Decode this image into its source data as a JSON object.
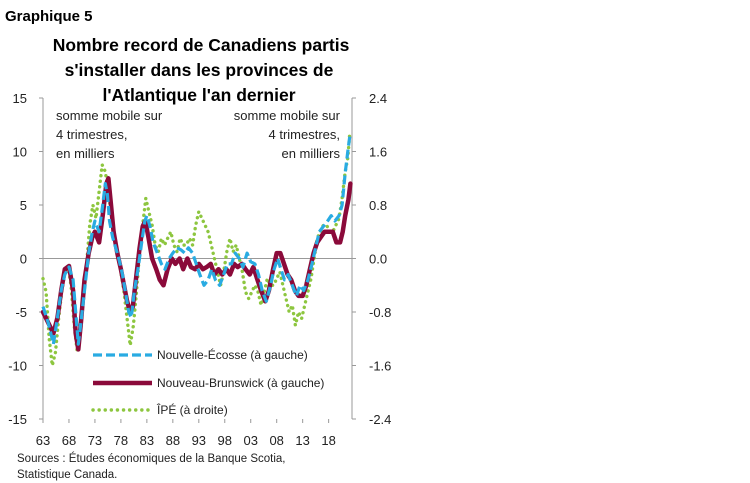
{
  "figure_label": "Graphique 5",
  "chart_data": {
    "type": "line",
    "title": [
      "Nombre record de Canadiens partis",
      "s'installer dans les provinces de",
      "l'Atlantique l'an dernier"
    ],
    "left_axis_note": [
      "somme mobile sur",
      "4 trimestres,",
      "en milliers"
    ],
    "right_axis_note": [
      "somme mobile sur",
      "4 trimestres,",
      "en milliers"
    ],
    "x_range": [
      1963,
      2022.5
    ],
    "x_ticks": [
      {
        "value": 1963,
        "label": "63"
      },
      {
        "value": 1968,
        "label": "68"
      },
      {
        "value": 1973,
        "label": "73"
      },
      {
        "value": 1978,
        "label": "78"
      },
      {
        "value": 1983,
        "label": "83"
      },
      {
        "value": 1988,
        "label": "88"
      },
      {
        "value": 1993,
        "label": "93"
      },
      {
        "value": 1998,
        "label": "98"
      },
      {
        "value": 2003,
        "label": "03"
      },
      {
        "value": 2008,
        "label": "08"
      },
      {
        "value": 2013,
        "label": "13"
      },
      {
        "value": 2018,
        "label": "18"
      }
    ],
    "y_left": {
      "range": [
        -15,
        15
      ],
      "ticks": [
        {
          "value": 15,
          "label": "15"
        },
        {
          "value": 10,
          "label": "10"
        },
        {
          "value": 5,
          "label": "5"
        },
        {
          "value": 0,
          "label": "0"
        },
        {
          "value": -5,
          "label": "-5"
        },
        {
          "value": -10,
          "label": "-10"
        },
        {
          "value": -15,
          "label": "-15"
        }
      ]
    },
    "y_right": {
      "range": [
        -2.4,
        2.4
      ],
      "ticks": [
        {
          "value": 2.4,
          "label": "2.4"
        },
        {
          "value": 1.6,
          "label": "1.6"
        },
        {
          "value": 0.8,
          "label": "0.8"
        },
        {
          "value": 0,
          "label": "0.0"
        },
        {
          "value": -0.8,
          "label": "-0.8"
        },
        {
          "value": -1.6,
          "label": "-1.6"
        },
        {
          "value": -2.4,
          "label": "-2.4"
        }
      ]
    },
    "series": [
      {
        "name": "Nouvelle-Écosse (à gauche)",
        "axis": "left",
        "color": "#29abe2",
        "style": "dashed",
        "points": [
          [
            1963,
            -4.5
          ],
          [
            1964,
            -6
          ],
          [
            1965,
            -8
          ],
          [
            1965.8,
            -5.5
          ],
          [
            1966.5,
            -3
          ],
          [
            1967.2,
            -1.5
          ],
          [
            1968,
            -0.8
          ],
          [
            1968.8,
            -2
          ],
          [
            1969.3,
            -5
          ],
          [
            1969.8,
            -8
          ],
          [
            1970.3,
            -6
          ],
          [
            1971,
            -3
          ],
          [
            1971.8,
            0.5
          ],
          [
            1972.5,
            2.5
          ],
          [
            1973,
            3.5
          ],
          [
            1973.8,
            2.5
          ],
          [
            1974.5,
            5
          ],
          [
            1975,
            7
          ],
          [
            1975.4,
            6
          ],
          [
            1975.8,
            3.5
          ],
          [
            1976.4,
            2
          ],
          [
            1977,
            1
          ],
          [
            1977.6,
            0
          ],
          [
            1978.3,
            -1.5
          ],
          [
            1979,
            -3.5
          ],
          [
            1979.5,
            -5
          ],
          [
            1980,
            -5.5
          ],
          [
            1980.6,
            -3
          ],
          [
            1981.3,
            -1
          ],
          [
            1982,
            1.5
          ],
          [
            1982.6,
            3.5
          ],
          [
            1983,
            4
          ],
          [
            1983.6,
            3
          ],
          [
            1984.2,
            1.5
          ],
          [
            1985,
            0.5
          ],
          [
            1985.8,
            -0.5
          ],
          [
            1986.5,
            -1
          ],
          [
            1987.3,
            0
          ],
          [
            1988,
            0.5
          ],
          [
            1988.8,
            1
          ],
          [
            1989.6,
            0.8
          ],
          [
            1990.3,
            0.5
          ],
          [
            1991,
            1
          ],
          [
            1991.8,
            0.5
          ],
          [
            1992.5,
            -0.5
          ],
          [
            1993.2,
            -1.5
          ],
          [
            1994,
            -2.5
          ],
          [
            1994.8,
            -2
          ],
          [
            1995.5,
            -1
          ],
          [
            1996.2,
            -2
          ],
          [
            1997,
            -2.5
          ],
          [
            1997.8,
            -1.5
          ],
          [
            1998.5,
            -0.5
          ],
          [
            1999.3,
            -0.5
          ],
          [
            2000,
            0.5
          ],
          [
            2000.8,
            0
          ],
          [
            2001.5,
            -0.8
          ],
          [
            2002.3,
            0.5
          ],
          [
            2003,
            -0.3
          ],
          [
            2003.8,
            -0.5
          ],
          [
            2004.5,
            -1.5
          ],
          [
            2005.2,
            -3
          ],
          [
            2006,
            -4
          ],
          [
            2006.8,
            -2.5
          ],
          [
            2007.5,
            -1
          ],
          [
            2008.2,
            0
          ],
          [
            2008.8,
            -1
          ],
          [
            2009.5,
            -2
          ],
          [
            2010.2,
            -1.5
          ],
          [
            2011,
            -2.5
          ],
          [
            2011.8,
            -3.5
          ],
          [
            2012.5,
            -2.5
          ],
          [
            2013.2,
            -3
          ],
          [
            2014,
            -2
          ],
          [
            2014.8,
            -0.5
          ],
          [
            2015.5,
            1
          ],
          [
            2016.2,
            2.5
          ],
          [
            2017,
            3
          ],
          [
            2017.8,
            3.5
          ],
          [
            2018.5,
            4
          ],
          [
            2019.2,
            3.5
          ],
          [
            2020,
            4
          ],
          [
            2020.6,
            5
          ],
          [
            2021.2,
            8
          ],
          [
            2021.7,
            10
          ],
          [
            2022.1,
            11.5
          ]
        ]
      },
      {
        "name": "Nouveau-Brunswick (à gauche)",
        "axis": "left",
        "color": "#8b0a3a",
        "style": "solid",
        "points": [
          [
            1963,
            -5
          ],
          [
            1964,
            -6
          ],
          [
            1965,
            -7
          ],
          [
            1965.8,
            -5.5
          ],
          [
            1966.5,
            -3
          ],
          [
            1967.2,
            -1
          ],
          [
            1968,
            -0.7
          ],
          [
            1968.8,
            -3
          ],
          [
            1969.3,
            -7
          ],
          [
            1969.8,
            -8.5
          ],
          [
            1970.3,
            -6
          ],
          [
            1971,
            -2
          ],
          [
            1971.8,
            0.5
          ],
          [
            1972.5,
            2
          ],
          [
            1973,
            2.5
          ],
          [
            1973.8,
            1.5
          ],
          [
            1974.5,
            4
          ],
          [
            1975.2,
            7
          ],
          [
            1975.6,
            7.5
          ],
          [
            1976,
            5.5
          ],
          [
            1976.6,
            2.5
          ],
          [
            1977.3,
            0.5
          ],
          [
            1978,
            -1
          ],
          [
            1978.6,
            -2.5
          ],
          [
            1979.2,
            -4
          ],
          [
            1979.8,
            -5
          ],
          [
            1980.3,
            -4.5
          ],
          [
            1981,
            -1.5
          ],
          [
            1981.6,
            1
          ],
          [
            1982.2,
            3
          ],
          [
            1982.7,
            3.5
          ],
          [
            1983.3,
            2
          ],
          [
            1984,
            0
          ],
          [
            1984.8,
            -1
          ],
          [
            1985.5,
            -2
          ],
          [
            1986.2,
            -2.5
          ],
          [
            1987,
            -1
          ],
          [
            1987.8,
            0
          ],
          [
            1988.5,
            -0.5
          ],
          [
            1989.3,
            0
          ],
          [
            1990,
            -1
          ],
          [
            1990.8,
            0
          ],
          [
            1991.5,
            -0.8
          ],
          [
            1992.3,
            -1
          ],
          [
            1993,
            -0.5
          ],
          [
            1993.8,
            -1
          ],
          [
            1994.5,
            -0.8
          ],
          [
            1995.3,
            -0.5
          ],
          [
            1996,
            -1.5
          ],
          [
            1996.8,
            -1
          ],
          [
            1997.5,
            -1.5
          ],
          [
            1998.3,
            -1
          ],
          [
            1999,
            -1.5
          ],
          [
            1999.8,
            -0.5
          ],
          [
            2000.5,
            -0.8
          ],
          [
            2001.3,
            -0.5
          ],
          [
            2002,
            -1
          ],
          [
            2002.8,
            -1.5
          ],
          [
            2003.5,
            -0.8
          ],
          [
            2004.3,
            -2
          ],
          [
            2005,
            -3
          ],
          [
            2005.8,
            -4
          ],
          [
            2006.5,
            -3
          ],
          [
            2007.3,
            -1
          ],
          [
            2008,
            0.5
          ],
          [
            2008.7,
            0.5
          ],
          [
            2009.4,
            -0.5
          ],
          [
            2010.1,
            -1.5
          ],
          [
            2010.8,
            -2
          ],
          [
            2011.5,
            -3
          ],
          [
            2012.2,
            -3.5
          ],
          [
            2013,
            -3.5
          ],
          [
            2013.7,
            -2.5
          ],
          [
            2014.4,
            -1
          ],
          [
            2015.1,
            0.5
          ],
          [
            2015.8,
            1.5
          ],
          [
            2016.5,
            2
          ],
          [
            2017.2,
            2.5
          ],
          [
            2018,
            2.5
          ],
          [
            2018.8,
            2.5
          ],
          [
            2019.5,
            1.5
          ],
          [
            2020.2,
            1.5
          ],
          [
            2020.7,
            2.5
          ],
          [
            2021.2,
            4
          ],
          [
            2021.8,
            5.5
          ],
          [
            2022.2,
            7
          ]
        ]
      },
      {
        "name": "ÎPÉ (à droite)",
        "axis": "right",
        "color": "#8dc63f",
        "style": "dotted",
        "points": [
          [
            1963,
            -0.3
          ],
          [
            1963.6,
            -0.5
          ],
          [
            1964.2,
            -1.2
          ],
          [
            1964.8,
            -1.6
          ],
          [
            1965.4,
            -1.4
          ],
          [
            1966,
            -0.9
          ],
          [
            1966.6,
            -0.5
          ],
          [
            1967.2,
            -0.2
          ],
          [
            1967.8,
            -0.1
          ],
          [
            1968.4,
            -0.4
          ],
          [
            1969,
            -1
          ],
          [
            1969.6,
            -1.4
          ],
          [
            1970.2,
            -1.1
          ],
          [
            1970.8,
            -0.6
          ],
          [
            1971.4,
            -0.1
          ],
          [
            1972,
            0.5
          ],
          [
            1972.6,
            0.8
          ],
          [
            1973.2,
            0.6
          ],
          [
            1973.8,
            1.0
          ],
          [
            1974.4,
            1.4
          ],
          [
            1975,
            1.3
          ],
          [
            1975.6,
            1.0
          ],
          [
            1976.2,
            0.6
          ],
          [
            1976.8,
            0.3
          ],
          [
            1977.4,
            0.1
          ],
          [
            1978,
            -0.2
          ],
          [
            1978.6,
            -0.5
          ],
          [
            1979.2,
            -0.9
          ],
          [
            1979.8,
            -1.3
          ],
          [
            1980.4,
            -1.0
          ],
          [
            1981,
            -0.5
          ],
          [
            1981.6,
            0.1
          ],
          [
            1982.2,
            0.5
          ],
          [
            1982.8,
            0.9
          ],
          [
            1983.4,
            0.7
          ],
          [
            1984,
            0.5
          ],
          [
            1984.6,
            0.2
          ],
          [
            1985.2,
            0.1
          ],
          [
            1985.8,
            0.3
          ],
          [
            1986.4,
            0.2
          ],
          [
            1987,
            0.3
          ],
          [
            1987.6,
            0.4
          ],
          [
            1988.2,
            0.2
          ],
          [
            1988.8,
            0.1
          ],
          [
            1989.4,
            0.3
          ],
          [
            1990,
            0.2
          ],
          [
            1990.6,
            0.2
          ],
          [
            1991.2,
            0.3
          ],
          [
            1991.8,
            0.2
          ],
          [
            1992.4,
            0.5
          ],
          [
            1993,
            0.7
          ],
          [
            1993.6,
            0.6
          ],
          [
            1994.2,
            0.5
          ],
          [
            1994.8,
            0.4
          ],
          [
            1995.4,
            0.2
          ],
          [
            1996,
            0
          ],
          [
            1996.6,
            -0.2
          ],
          [
            1997.2,
            -0.4
          ],
          [
            1997.8,
            -0.2
          ],
          [
            1998.4,
            0.1
          ],
          [
            1999,
            0.3
          ],
          [
            1999.6,
            0.1
          ],
          [
            2000.2,
            0.2
          ],
          [
            2000.8,
            0
          ],
          [
            2001.4,
            -0.2
          ],
          [
            2002,
            -0.5
          ],
          [
            2002.6,
            -0.6
          ],
          [
            2003.2,
            -0.5
          ],
          [
            2003.8,
            -0.4
          ],
          [
            2004.4,
            -0.5
          ],
          [
            2005,
            -0.7
          ],
          [
            2005.6,
            -0.5
          ],
          [
            2006.2,
            -0.3
          ],
          [
            2006.8,
            -0.4
          ],
          [
            2007.4,
            -0.4
          ],
          [
            2008,
            -0.3
          ],
          [
            2008.6,
            -0.2
          ],
          [
            2009.2,
            -0.4
          ],
          [
            2009.8,
            -0.6
          ],
          [
            2010.4,
            -0.8
          ],
          [
            2011,
            -0.7
          ],
          [
            2011.6,
            -1.0
          ],
          [
            2012.2,
            -0.8
          ],
          [
            2012.8,
            -0.9
          ],
          [
            2013.4,
            -0.7
          ],
          [
            2014,
            -0.5
          ],
          [
            2014.6,
            -0.3
          ],
          [
            2015.2,
            0
          ],
          [
            2015.8,
            0.3
          ],
          [
            2016.4,
            0.4
          ],
          [
            2017,
            0.5
          ],
          [
            2017.6,
            0.5
          ],
          [
            2018.2,
            0.4
          ],
          [
            2018.8,
            0.4
          ],
          [
            2019.4,
            0.5
          ],
          [
            2020,
            0.6
          ],
          [
            2020.6,
            0.9
          ],
          [
            2021.2,
            1.3
          ],
          [
            2021.7,
            1.5
          ],
          [
            2022.1,
            1.9
          ]
        ]
      }
    ],
    "legend_placement": "bottom-center"
  },
  "source": [
    "Sources : Études économiques de la Banque Scotia,",
    "Statistique Canada."
  ]
}
